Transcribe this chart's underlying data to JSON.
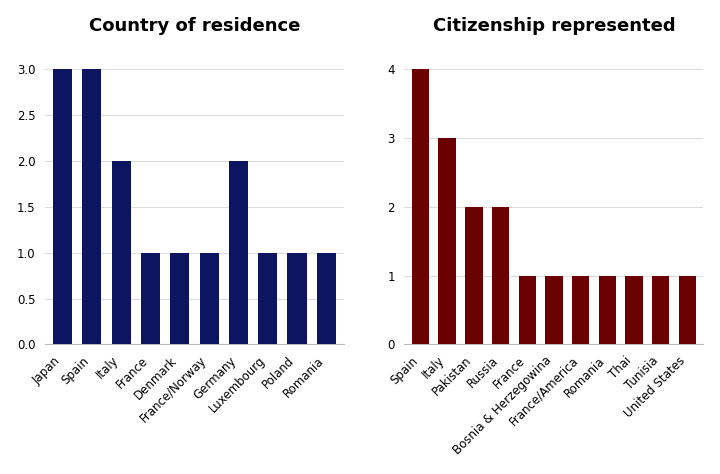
{
  "residence_categories": [
    "Japan",
    "Spain",
    "Italy",
    "France",
    "Denmark",
    "France/Norway",
    "Germany",
    "Luxembourg",
    "Poland",
    "Romania"
  ],
  "residence_values": [
    3,
    3,
    2,
    1,
    1,
    1,
    2,
    1,
    1,
    1
  ],
  "residence_color": "#0d1460",
  "residence_title": "Country of residence",
  "residence_ylim": [
    0,
    3.3
  ],
  "residence_yticks": [
    0.0,
    0.5,
    1.0,
    1.5,
    2.0,
    2.5,
    3.0
  ],
  "citizenship_categories": [
    "Spain",
    "Italy",
    "Pakistan",
    "Russia",
    "France",
    "Bosnia & Herzegowina",
    "France/America",
    "Romania",
    "Thai",
    "Tunisia",
    "United States"
  ],
  "citizenship_values": [
    4,
    3,
    2,
    2,
    1,
    1,
    1,
    1,
    1,
    1,
    1
  ],
  "citizenship_color": "#6b0000",
  "citizenship_title": "Citizenship represented",
  "citizenship_ylim": [
    0,
    4.4
  ],
  "citizenship_yticks": [
    0,
    1,
    2,
    3,
    4
  ],
  "bg_color": "#ffffff",
  "title_fontsize": 13,
  "tick_fontsize": 8.5,
  "grid_color": "#dddddd",
  "bar_width": 0.65
}
